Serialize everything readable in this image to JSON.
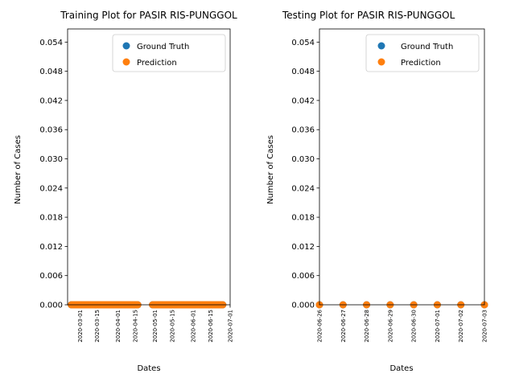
{
  "chart_data": [
    {
      "type": "scatter",
      "title": "Training Plot for PASIR RIS-PUNGGOL",
      "xlabel": "Dates",
      "ylabel": "Number of Cases",
      "xlim": [
        "2020-02-20",
        "2020-07-01"
      ],
      "ylim": [
        0,
        0.0567
      ],
      "xticks": [
        "2020-03-01",
        "2020-03-15",
        "2020-04-01",
        "2020-04-15",
        "2020-05-01",
        "2020-05-15",
        "2020-06-01",
        "2020-06-15",
        "2020-07-01"
      ],
      "yticks": [
        "0.000",
        "0.006",
        "0.012",
        "0.018",
        "0.024",
        "0.030",
        "0.036",
        "0.042",
        "0.048",
        "0.054"
      ],
      "legend_position": "upper right",
      "grid": false,
      "series": [
        {
          "name": "Ground Truth",
          "color": "#1f77b4",
          "x_range": [
            [
              "2020-02-23",
              "2020-04-17"
            ],
            [
              "2020-04-29",
              "2020-06-25"
            ]
          ],
          "y_value": 0
        },
        {
          "name": "Prediction",
          "color": "#ff7f0e",
          "x_range": [
            [
              "2020-02-23",
              "2020-04-17"
            ],
            [
              "2020-04-29",
              "2020-06-25"
            ]
          ],
          "y_value": 0
        }
      ]
    },
    {
      "type": "scatter",
      "title": "Testing Plot for PASIR RIS-PUNGGOL",
      "xlabel": "Dates",
      "ylabel": "Number of Cases",
      "xlim": [
        "2020-06-26",
        "2020-07-03"
      ],
      "ylim": [
        0,
        0.0567
      ],
      "xticks": [
        "2020-06-26",
        "2020-06-27",
        "2020-06-28",
        "2020-06-29",
        "2020-06-30",
        "2020-07-01",
        "2020-07-02",
        "2020-07-03"
      ],
      "yticks": [
        "0.000",
        "0.006",
        "0.012",
        "0.018",
        "0.024",
        "0.030",
        "0.036",
        "0.042",
        "0.048",
        "0.054"
      ],
      "legend_position": "upper right",
      "grid": false,
      "series": [
        {
          "name": "Ground Truth",
          "color": "#1f77b4",
          "x": [
            "2020-06-26",
            "2020-06-27",
            "2020-06-28",
            "2020-06-29",
            "2020-06-30",
            "2020-07-01",
            "2020-07-02",
            "2020-07-03"
          ],
          "y": [
            0,
            0,
            0,
            0,
            0,
            0,
            0,
            0
          ]
        },
        {
          "name": "Prediction",
          "color": "#ff7f0e",
          "x": [
            "2020-06-26",
            "2020-06-27",
            "2020-06-28",
            "2020-06-29",
            "2020-06-30",
            "2020-07-01",
            "2020-07-02",
            "2020-07-03"
          ],
          "y": [
            0,
            0,
            0,
            0,
            0,
            0,
            0,
            0
          ]
        }
      ]
    }
  ]
}
